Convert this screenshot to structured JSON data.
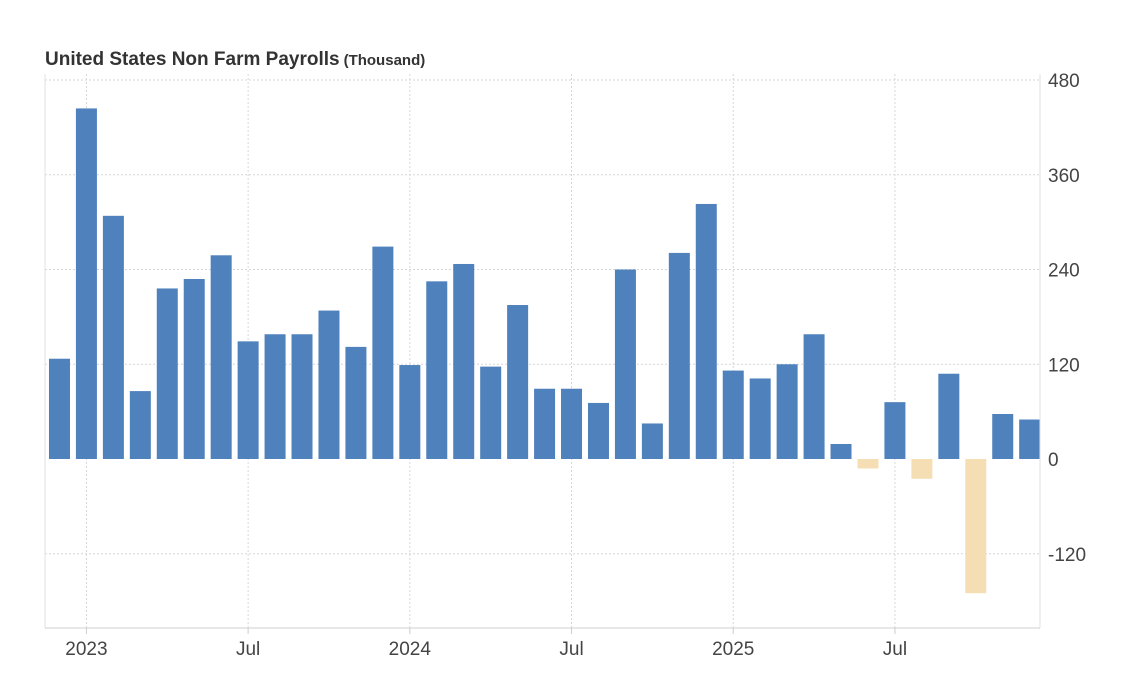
{
  "chart_data": {
    "type": "bar",
    "title": "United States Non Farm Payrolls",
    "unit_label": "(Thousand)",
    "xlabel": "",
    "ylabel": "",
    "ylim": [
      -120,
      480
    ],
    "y_ticks": [
      480,
      360,
      240,
      120,
      0,
      -120
    ],
    "x_tick_labels": [
      {
        "label": "2023",
        "month": "2023-01"
      },
      {
        "label": "Jul",
        "month": "2023-07"
      },
      {
        "label": "2024",
        "month": "2024-01"
      },
      {
        "label": "Jul",
        "month": "2024-07"
      },
      {
        "label": "2025",
        "month": "2025-01"
      },
      {
        "label": "Jul",
        "month": "2025-07"
      }
    ],
    "grid": true,
    "colors": {
      "positive": "#4f81bd",
      "negative": "#f5deb3"
    },
    "series": [
      {
        "x": [
          "2022-12",
          "2023-01",
          "2023-02",
          "2023-03",
          "2023-04",
          "2023-05",
          "2023-06",
          "2023-07",
          "2023-08",
          "2023-09",
          "2023-10",
          "2023-11",
          "2023-12",
          "2024-01",
          "2024-02",
          "2024-03",
          "2024-04",
          "2024-05",
          "2024-06",
          "2024-07",
          "2024-08",
          "2024-09",
          "2024-10",
          "2024-11",
          "2024-12",
          "2025-01",
          "2025-02",
          "2025-03",
          "2025-04",
          "2025-05",
          "2025-06",
          "2025-07",
          "2025-08",
          "2025-09",
          "2025-10",
          "2025-11",
          "2025-12"
        ],
        "values": [
          127,
          444,
          308,
          86,
          216,
          228,
          258,
          149,
          158,
          158,
          188,
          142,
          269,
          119,
          225,
          247,
          117,
          195,
          89,
          89,
          71,
          240,
          45,
          261,
          323,
          112,
          102,
          120,
          158,
          19,
          -12,
          72,
          -25,
          108,
          -170,
          57,
          50
        ]
      }
    ]
  }
}
